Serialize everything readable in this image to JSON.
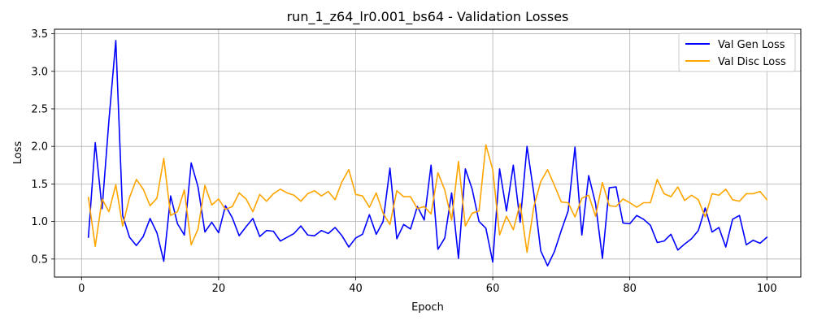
{
  "chart_data": {
    "type": "line",
    "title": "run_1_z64_lr0.001_bs64 - Validation Losses",
    "xlabel": "Epoch",
    "ylabel": "Loss",
    "xlim": [
      -3.95,
      104.95
    ],
    "ylim": [
      0.26,
      3.56
    ],
    "xticks": [
      0,
      20,
      40,
      60,
      80,
      100
    ],
    "yticks": [
      0.5,
      1.0,
      1.5,
      2.0,
      2.5,
      3.0,
      3.5
    ],
    "ytick_labels": [
      "0.5",
      "1.0",
      "1.5",
      "2.0",
      "2.5",
      "3.0",
      "3.5"
    ],
    "grid": true,
    "legend_position": "top-right",
    "x": [
      1,
      2,
      3,
      4,
      5,
      6,
      7,
      8,
      9,
      10,
      11,
      12,
      13,
      14,
      15,
      16,
      17,
      18,
      19,
      20,
      21,
      22,
      23,
      24,
      25,
      26,
      27,
      28,
      29,
      30,
      31,
      32,
      33,
      34,
      35,
      36,
      37,
      38,
      39,
      40,
      41,
      42,
      43,
      44,
      45,
      46,
      47,
      48,
      49,
      50,
      51,
      52,
      53,
      54,
      55,
      56,
      57,
      58,
      59,
      60,
      61,
      62,
      63,
      64,
      65,
      66,
      67,
      68,
      69,
      70,
      71,
      72,
      73,
      74,
      75,
      76,
      77,
      78,
      79,
      80,
      81,
      82,
      83,
      84,
      85,
      86,
      87,
      88,
      89,
      90,
      91,
      92,
      93,
      94,
      95,
      96,
      97,
      98,
      99,
      100
    ],
    "series": [
      {
        "name": "Val Gen Loss",
        "color": "#0000ff",
        "values": [
          0.79,
          2.05,
          1.17,
          2.35,
          3.41,
          1.08,
          0.79,
          0.68,
          0.8,
          1.04,
          0.85,
          0.47,
          1.34,
          0.97,
          0.82,
          1.78,
          1.46,
          0.86,
          0.99,
          0.85,
          1.21,
          1.05,
          0.81,
          0.93,
          1.04,
          0.8,
          0.88,
          0.87,
          0.74,
          0.79,
          0.84,
          0.94,
          0.82,
          0.81,
          0.88,
          0.84,
          0.92,
          0.81,
          0.66,
          0.78,
          0.83,
          1.09,
          0.83,
          1.0,
          1.71,
          0.77,
          0.96,
          0.9,
          1.2,
          1.02,
          1.75,
          0.63,
          0.78,
          1.38,
          0.51,
          1.7,
          1.43,
          1.0,
          0.91,
          0.46,
          1.7,
          1.14,
          1.75,
          0.99,
          2.0,
          1.37,
          0.61,
          0.41,
          0.6,
          0.88,
          1.14,
          1.99,
          0.82,
          1.61,
          1.24,
          0.51,
          1.45,
          1.46,
          0.98,
          0.97,
          1.08,
          1.03,
          0.95,
          0.72,
          0.74,
          0.83,
          0.62,
          0.7,
          0.77,
          0.88,
          1.18,
          0.86,
          0.92,
          0.66,
          1.03,
          1.08,
          0.69,
          0.75,
          0.71,
          0.79
        ]
      },
      {
        "name": "Val Disc Loss",
        "color": "#ffa500",
        "values": [
          1.32,
          0.67,
          1.3,
          1.13,
          1.49,
          0.94,
          1.32,
          1.56,
          1.43,
          1.21,
          1.31,
          1.84,
          1.08,
          1.13,
          1.42,
          0.69,
          0.9,
          1.48,
          1.22,
          1.3,
          1.16,
          1.2,
          1.38,
          1.3,
          1.13,
          1.36,
          1.27,
          1.37,
          1.43,
          1.38,
          1.35,
          1.27,
          1.37,
          1.41,
          1.34,
          1.4,
          1.29,
          1.53,
          1.69,
          1.36,
          1.34,
          1.19,
          1.38,
          1.11,
          0.96,
          1.41,
          1.33,
          1.33,
          1.17,
          1.2,
          1.1,
          1.65,
          1.42,
          1.02,
          1.8,
          0.94,
          1.11,
          1.14,
          2.02,
          1.69,
          0.82,
          1.07,
          0.89,
          1.24,
          0.59,
          1.2,
          1.53,
          1.69,
          1.48,
          1.26,
          1.25,
          1.06,
          1.31,
          1.35,
          1.07,
          1.52,
          1.21,
          1.2,
          1.3,
          1.25,
          1.19,
          1.25,
          1.25,
          1.56,
          1.37,
          1.33,
          1.46,
          1.28,
          1.35,
          1.29,
          1.06,
          1.37,
          1.35,
          1.43,
          1.29,
          1.27,
          1.37,
          1.37,
          1.4,
          1.29
        ]
      }
    ]
  }
}
